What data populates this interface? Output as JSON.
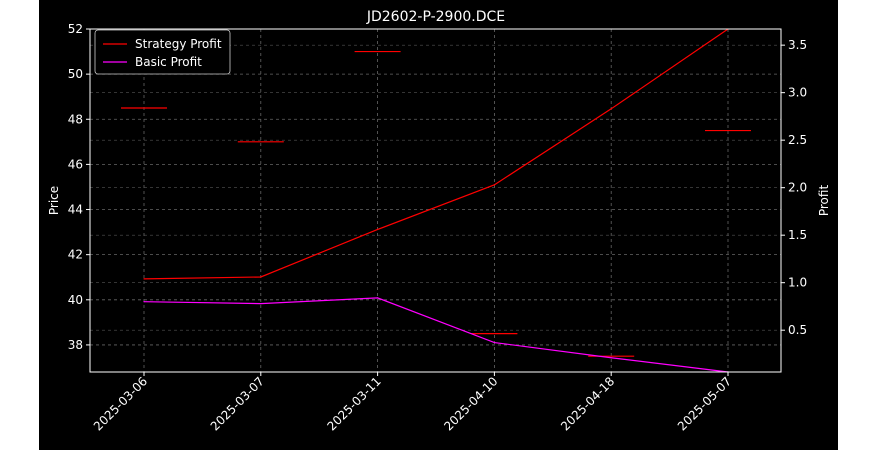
{
  "chart_data": {
    "type": "line",
    "title": "JD2602-P-2900.DCE",
    "ylabel": "Price",
    "y2label": "Profit",
    "categories": [
      "2025-03-06",
      "2025-03-07",
      "2025-03-11",
      "2025-04-10",
      "2025-04-18",
      "2025-05-07"
    ],
    "ylim": [
      36.8,
      52.0
    ],
    "y2lim": [
      0.06,
      3.67
    ],
    "yticks": [
      38,
      40,
      42,
      44,
      46,
      48,
      50,
      52
    ],
    "y2ticks": [
      0.5,
      1.0,
      1.5,
      2.0,
      2.5,
      3.0,
      3.5
    ],
    "ytick_labels": [
      "38",
      "40",
      "42",
      "44",
      "46",
      "48",
      "50",
      "52"
    ],
    "y2tick_labels": [
      "0.5",
      "1.0",
      "1.5",
      "2.0",
      "2.5",
      "3.0",
      "3.5"
    ],
    "price_marks": [
      {
        "category": "2025-03-06",
        "value": 48.5
      },
      {
        "category": "2025-03-07",
        "value": 47.0
      },
      {
        "category": "2025-03-11",
        "value": 51.0
      },
      {
        "category": "2025-04-10",
        "value": 38.5
      },
      {
        "category": "2025-04-18",
        "value": 37.5
      },
      {
        "category": "2025-05-07",
        "value": 47.5
      }
    ],
    "series": [
      {
        "name": "Strategy Profit",
        "axis": "right",
        "color": "#ff0000",
        "values": [
          1.04,
          1.06,
          1.56,
          2.03,
          2.83,
          3.67
        ]
      },
      {
        "name": "Basic Profit",
        "axis": "right",
        "color": "#ff00ff",
        "values": [
          0.8,
          0.78,
          0.84,
          0.37,
          0.21,
          0.06
        ]
      }
    ],
    "price_mark_color": "#ff0000",
    "grid": true,
    "legend_position": "top-left"
  }
}
